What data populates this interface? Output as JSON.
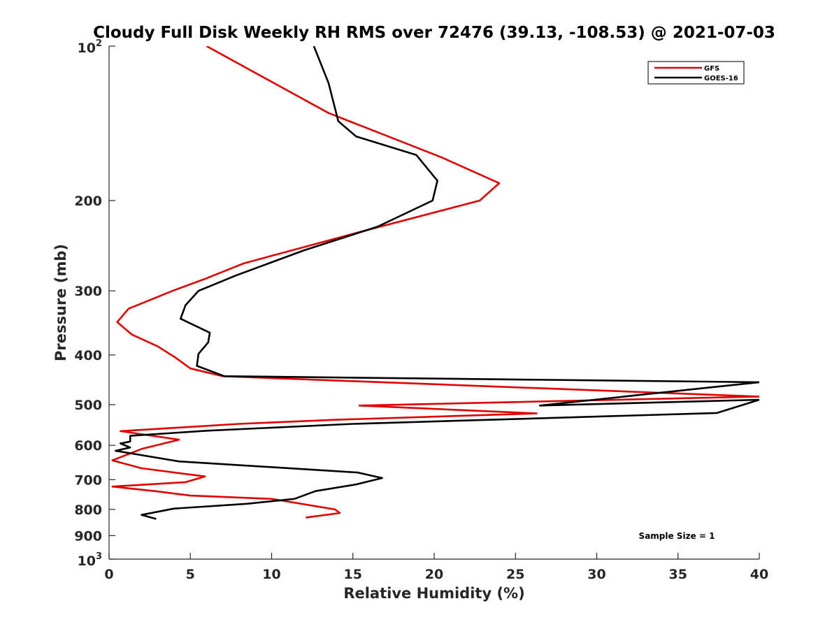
{
  "chart_data": {
    "type": "line",
    "title": "Cloudy Full Disk Weekly RH RMS over 72476 (39.13, -108.53) @ 2021-07-03",
    "xlabel": "Relative Humidity (%)",
    "ylabel": "Pressure (mb)",
    "xlim": [
      0,
      40
    ],
    "ylim": [
      100,
      1000
    ],
    "y_scale": "log",
    "y_reversed": true,
    "x_ticks": [
      0,
      5,
      10,
      15,
      20,
      25,
      30,
      35,
      40
    ],
    "x_tick_labels": [
      "0",
      "5",
      "10",
      "15",
      "20",
      "25",
      "30",
      "35",
      "40"
    ],
    "y_ticks": [
      200,
      300,
      400,
      500,
      600,
      700,
      800,
      900
    ],
    "y_tick_labels": [
      "200",
      "300",
      "400",
      "500",
      "600",
      "700",
      "800",
      "900"
    ],
    "y_top_label": {
      "base": "10",
      "exp": "2"
    },
    "y_bottom_label": {
      "base": "10",
      "exp": "3"
    },
    "grid": false,
    "legend_position": "top-right",
    "annotation": "Sample Size = 1",
    "series": [
      {
        "name": "GFS",
        "color": "#e00000",
        "points": [
          [
            6.0,
            100
          ],
          [
            13.5,
            135
          ],
          [
            20.5,
            165
          ],
          [
            24.0,
            185
          ],
          [
            22.8,
            200
          ],
          [
            15.5,
            230
          ],
          [
            8.3,
            265
          ],
          [
            5.8,
            285
          ],
          [
            3.9,
            300
          ],
          [
            1.2,
            325
          ],
          [
            0.5,
            345
          ],
          [
            1.4,
            365
          ],
          [
            3.0,
            385
          ],
          [
            4.1,
            405
          ],
          [
            5.0,
            425
          ],
          [
            7.0,
            440
          ],
          [
            40,
            482
          ],
          [
            15.4,
            502
          ],
          [
            26.3,
            520
          ],
          [
            14.0,
            535
          ],
          [
            8.0,
            545
          ],
          [
            0.7,
            563
          ],
          [
            4.3,
            585
          ],
          [
            2.0,
            610
          ],
          [
            0.2,
            642
          ],
          [
            2.0,
            665
          ],
          [
            5.9,
            690
          ],
          [
            4.7,
            708
          ],
          [
            0.2,
            722
          ],
          [
            3.0,
            738
          ],
          [
            5.0,
            752
          ],
          [
            10.0,
            763
          ],
          [
            13.9,
            800
          ],
          [
            14.2,
            813
          ],
          [
            12.1,
            830
          ]
        ]
      },
      {
        "name": "GOES-16",
        "color": "#000000",
        "points": [
          [
            12.6,
            100
          ],
          [
            13.5,
            118
          ],
          [
            14.1,
            140
          ],
          [
            15.2,
            150
          ],
          [
            18.9,
            163
          ],
          [
            20.2,
            183
          ],
          [
            19.9,
            200
          ],
          [
            16.5,
            225
          ],
          [
            12.0,
            250
          ],
          [
            7.8,
            280
          ],
          [
            5.5,
            300
          ],
          [
            4.7,
            320
          ],
          [
            4.4,
            340
          ],
          [
            6.2,
            362
          ],
          [
            6.1,
            378
          ],
          [
            5.5,
            398
          ],
          [
            5.4,
            420
          ],
          [
            7.1,
            440
          ],
          [
            40,
            452
          ],
          [
            26.5,
            502
          ],
          [
            40,
            489
          ],
          [
            37.4,
            519
          ],
          [
            15.0,
            545
          ],
          [
            6.0,
            562
          ],
          [
            1.3,
            575
          ],
          [
            1.3,
            590
          ],
          [
            0.7,
            595
          ],
          [
            1.3,
            606
          ],
          [
            0.4,
            615
          ],
          [
            4.3,
            645
          ],
          [
            15.3,
            678
          ],
          [
            16.8,
            695
          ],
          [
            15.2,
            715
          ],
          [
            12.7,
            737
          ],
          [
            11.4,
            763
          ],
          [
            8.5,
            780
          ],
          [
            4.0,
            797
          ],
          [
            2.0,
            820
          ],
          [
            2.9,
            835
          ]
        ]
      }
    ]
  }
}
